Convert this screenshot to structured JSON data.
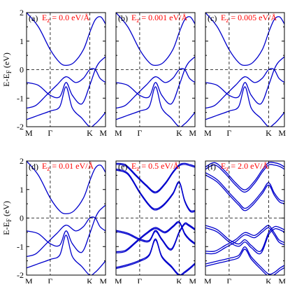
{
  "figure": {
    "ylabel": "E-E",
    "ylabel_sub": "F",
    "ylabel_unit": " (eV)",
    "field_prefix": "E",
    "field_sub": "z",
    "field_color": "#ff0000",
    "band_color": "#0000cc"
  },
  "chart_data": [
    {
      "type": "line",
      "panel": "(a)",
      "field": "0.0 eV/Å",
      "x_ticks": [
        "M",
        "Γ",
        "K",
        "M"
      ],
      "ylim": [
        -2,
        2
      ],
      "y_ticks": [
        "-2",
        "-1",
        "0",
        "1",
        "2"
      ],
      "fermi_level": 0,
      "splitting": 0,
      "series": [
        {
          "name": "",
          "x": [
            0,
            0.15,
            0.3,
            0.42,
            0.5,
            0.6,
            0.72,
            0.8,
            0.87,
            0.94,
            1
          ],
          "y": [
            2.0,
            1.5,
            0.7,
            0.25,
            0.15,
            0.25,
            0.7,
            1.3,
            1.75,
            1.85,
            1.6
          ]
        },
        {
          "name": "",
          "x": [
            0,
            0.15,
            0.3,
            0.42,
            0.5,
            0.58,
            0.7,
            0.8,
            0.87,
            0.92,
            1
          ],
          "y": [
            -0.45,
            -0.55,
            -0.9,
            -0.95,
            -0.45,
            -0.9,
            -1.2,
            -0.55,
            0,
            0.25,
            0.45
          ]
        },
        {
          "name": "",
          "x": [
            0,
            0.12,
            0.25,
            0.38,
            0.5,
            0.62,
            0.72,
            0.8,
            0.87,
            0.93,
            1
          ],
          "y": [
            -1.35,
            -1.25,
            -0.9,
            -0.55,
            -0.25,
            -0.45,
            -0.3,
            0,
            0,
            -0.3,
            -0.45
          ]
        },
        {
          "name": "",
          "x": [
            0,
            0.15,
            0.3,
            0.42,
            0.5,
            0.58,
            0.7,
            0.8,
            0.87,
            0.94,
            1
          ],
          "y": [
            -1.75,
            -1.6,
            -1.45,
            -1.3,
            -0.6,
            -1.35,
            -1.7,
            -2.0,
            -1.9,
            -1.7,
            -1.5
          ]
        }
      ]
    },
    {
      "type": "line",
      "panel": "(b)",
      "field": "0.001 eV/Å",
      "x_ticks": [
        "M",
        "Γ",
        "K",
        "M"
      ],
      "ylim": [
        -2,
        2
      ],
      "y_ticks": [],
      "fermi_level": 0,
      "splitting": 0,
      "series": [
        {
          "name": "",
          "x": [
            0,
            0.15,
            0.3,
            0.42,
            0.5,
            0.6,
            0.72,
            0.8,
            0.87,
            0.94,
            1
          ],
          "y": [
            2.0,
            1.5,
            0.7,
            0.25,
            0.15,
            0.25,
            0.7,
            1.3,
            1.75,
            1.85,
            1.6
          ]
        },
        {
          "name": "",
          "x": [
            0,
            0.15,
            0.3,
            0.42,
            0.5,
            0.58,
            0.7,
            0.8,
            0.87,
            0.92,
            1
          ],
          "y": [
            -0.45,
            -0.55,
            -0.9,
            -0.95,
            -0.45,
            -0.9,
            -1.2,
            -0.55,
            0,
            0.25,
            0.45
          ]
        },
        {
          "name": "",
          "x": [
            0,
            0.12,
            0.25,
            0.38,
            0.5,
            0.62,
            0.72,
            0.8,
            0.87,
            0.93,
            1
          ],
          "y": [
            -1.35,
            -1.25,
            -0.9,
            -0.55,
            -0.25,
            -0.45,
            -0.3,
            0,
            0,
            -0.3,
            -0.45
          ]
        },
        {
          "name": "",
          "x": [
            0,
            0.15,
            0.3,
            0.42,
            0.5,
            0.58,
            0.7,
            0.8,
            0.87,
            0.94,
            1
          ],
          "y": [
            -1.75,
            -1.6,
            -1.45,
            -1.3,
            -0.6,
            -1.35,
            -1.7,
            -2.0,
            -1.9,
            -1.7,
            -1.5
          ]
        }
      ]
    },
    {
      "type": "line",
      "panel": "(c)",
      "field": "0.005 eV/Å",
      "x_ticks": [
        "M",
        "Γ",
        "K",
        "M"
      ],
      "ylim": [
        -2,
        2
      ],
      "y_ticks": [],
      "fermi_level": 0,
      "splitting": 0,
      "series": [
        {
          "name": "",
          "x": [
            0,
            0.15,
            0.3,
            0.42,
            0.5,
            0.6,
            0.72,
            0.8,
            0.87,
            0.94,
            1
          ],
          "y": [
            2.0,
            1.5,
            0.7,
            0.25,
            0.15,
            0.25,
            0.7,
            1.3,
            1.75,
            1.85,
            1.6
          ]
        },
        {
          "name": "",
          "x": [
            0,
            0.15,
            0.3,
            0.42,
            0.5,
            0.58,
            0.7,
            0.8,
            0.87,
            0.92,
            1
          ],
          "y": [
            -0.45,
            -0.55,
            -0.9,
            -0.95,
            -0.45,
            -0.9,
            -1.2,
            -0.55,
            0,
            0.25,
            0.45
          ]
        },
        {
          "name": "",
          "x": [
            0,
            0.12,
            0.25,
            0.38,
            0.5,
            0.62,
            0.72,
            0.8,
            0.87,
            0.93,
            1
          ],
          "y": [
            -1.35,
            -1.25,
            -0.9,
            -0.55,
            -0.25,
            -0.45,
            -0.3,
            0,
            0,
            -0.3,
            -0.45
          ]
        },
        {
          "name": "",
          "x": [
            0,
            0.15,
            0.3,
            0.42,
            0.5,
            0.58,
            0.7,
            0.8,
            0.87,
            0.94,
            1
          ],
          "y": [
            -1.75,
            -1.6,
            -1.45,
            -1.3,
            -0.6,
            -1.35,
            -1.7,
            -2.0,
            -1.9,
            -1.7,
            -1.5
          ]
        }
      ]
    },
    {
      "type": "line",
      "panel": "(d)",
      "field": "0.01 eV/Å",
      "x_ticks": [
        "M",
        "Γ",
        "K",
        "M"
      ],
      "ylim": [
        -2,
        2
      ],
      "y_ticks": [
        "-2",
        "-1",
        "0",
        "1",
        "2"
      ],
      "fermi_level": 0,
      "splitting": 0,
      "series": [
        {
          "name": "",
          "x": [
            0,
            0.15,
            0.3,
            0.42,
            0.5,
            0.6,
            0.72,
            0.8,
            0.87,
            0.94,
            1
          ],
          "y": [
            2.0,
            1.5,
            0.7,
            0.25,
            0.15,
            0.25,
            0.7,
            1.3,
            1.75,
            1.85,
            1.6
          ]
        },
        {
          "name": "",
          "x": [
            0,
            0.15,
            0.3,
            0.42,
            0.5,
            0.58,
            0.7,
            0.8,
            0.87,
            0.92,
            1
          ],
          "y": [
            -0.45,
            -0.55,
            -0.9,
            -0.95,
            -0.45,
            -0.9,
            -1.2,
            -0.55,
            0,
            0.25,
            0.45
          ]
        },
        {
          "name": "",
          "x": [
            0,
            0.12,
            0.25,
            0.38,
            0.5,
            0.62,
            0.72,
            0.8,
            0.87,
            0.93,
            1
          ],
          "y": [
            -1.35,
            -1.25,
            -0.9,
            -0.55,
            -0.25,
            -0.45,
            -0.3,
            0,
            0,
            -0.3,
            -0.45
          ]
        },
        {
          "name": "",
          "x": [
            0,
            0.15,
            0.3,
            0.42,
            0.5,
            0.58,
            0.7,
            0.8,
            0.87,
            0.94,
            1
          ],
          "y": [
            -1.75,
            -1.6,
            -1.45,
            -1.3,
            -0.6,
            -1.35,
            -1.7,
            -2.0,
            -1.9,
            -1.7,
            -1.5
          ]
        }
      ]
    },
    {
      "type": "line",
      "panel": "(e)",
      "field": "0.5 eV/Å",
      "x_ticks": [
        "M",
        "Γ",
        "K",
        "M"
      ],
      "ylim": [
        -2,
        2
      ],
      "y_ticks": [],
      "fermi_level": 0,
      "splitting": 0.04,
      "series": [
        {
          "name": "",
          "x": [
            0,
            0.12,
            0.25,
            0.38,
            0.5,
            0.62,
            0.72,
            0.8,
            0.87,
            0.94,
            1
          ],
          "y": [
            1.9,
            1.85,
            1.5,
            1.15,
            0.9,
            1.2,
            1.6,
            1.85,
            1.9,
            1.85,
            1.8
          ]
        },
        {
          "name": "",
          "x": [
            0,
            0.15,
            0.3,
            0.42,
            0.5,
            0.6,
            0.72,
            0.8,
            0.87,
            0.94,
            1
          ],
          "y": [
            1.7,
            1.55,
            0.9,
            0.45,
            0.3,
            0.45,
            0.85,
            1.25,
            0.6,
            0.25,
            0.25
          ]
        },
        {
          "name": "",
          "x": [
            0,
            0.15,
            0.3,
            0.42,
            0.5,
            0.58,
            0.7,
            0.8,
            0.87,
            0.92,
            1
          ],
          "y": [
            -0.45,
            -0.55,
            -0.75,
            -0.8,
            -0.45,
            -0.75,
            -1.1,
            -0.5,
            -0.2,
            -0.25,
            -0.4
          ]
        },
        {
          "name": "",
          "x": [
            0,
            0.12,
            0.25,
            0.38,
            0.5,
            0.62,
            0.72,
            0.8,
            0.87,
            0.93,
            1
          ],
          "y": [
            -1.2,
            -1.15,
            -0.85,
            -0.55,
            -0.35,
            -0.5,
            -0.3,
            -0.15,
            -0.55,
            -0.75,
            -0.9
          ]
        },
        {
          "name": "",
          "x": [
            0,
            0.15,
            0.3,
            0.42,
            0.5,
            0.58,
            0.7,
            0.8,
            0.87,
            0.94,
            1
          ],
          "y": [
            -1.75,
            -1.65,
            -1.5,
            -1.3,
            -0.75,
            -1.35,
            -1.7,
            -2.0,
            -1.9,
            -1.75,
            -1.6
          ]
        }
      ]
    },
    {
      "type": "line",
      "panel": "(f)",
      "field": "2.0 eV/Å",
      "x_ticks": [
        "M",
        "Γ",
        "K",
        "M"
      ],
      "ylim": [
        -2,
        2
      ],
      "y_ticks": [],
      "fermi_level": 0,
      "splitting": 0.08,
      "series": [
        {
          "name": "",
          "x": [
            0,
            0.12,
            0.25,
            0.38,
            0.5,
            0.62,
            0.72,
            0.8,
            0.87,
            0.94,
            1
          ],
          "y": [
            1.75,
            1.9,
            1.6,
            1.2,
            0.95,
            1.25,
            1.65,
            1.9,
            1.9,
            1.85,
            1.75
          ]
        },
        {
          "name": "",
          "x": [
            0,
            0.15,
            0.3,
            0.42,
            0.5,
            0.6,
            0.72,
            0.8,
            0.87,
            0.94,
            1
          ],
          "y": [
            1.55,
            1.3,
            0.85,
            0.5,
            0.3,
            0.5,
            0.9,
            1.2,
            0.85,
            0.6,
            0.55
          ]
        },
        {
          "name": "",
          "x": [
            0,
            0.15,
            0.3,
            0.42,
            0.5,
            0.58,
            0.7,
            0.8,
            0.87,
            0.92,
            1
          ],
          "y": [
            -0.3,
            -0.45,
            -0.8,
            -0.95,
            -0.8,
            -1.0,
            -1.2,
            -0.55,
            -0.35,
            -0.35,
            -0.45
          ]
        },
        {
          "name": "",
          "x": [
            0,
            0.12,
            0.25,
            0.38,
            0.5,
            0.62,
            0.72,
            0.8,
            0.87,
            0.93,
            1
          ],
          "y": [
            -1.2,
            -1.2,
            -1.0,
            -0.8,
            -0.55,
            -0.65,
            -0.45,
            -0.3,
            -0.55,
            -0.8,
            -0.9
          ]
        },
        {
          "name": "",
          "x": [
            0,
            0.15,
            0.3,
            0.42,
            0.5,
            0.58,
            0.7,
            0.8,
            0.87,
            0.94,
            1
          ],
          "y": [
            -1.65,
            -1.55,
            -1.45,
            -1.35,
            -1.05,
            -1.4,
            -1.75,
            -2.0,
            -1.95,
            -1.8,
            -1.7
          ]
        }
      ]
    }
  ]
}
